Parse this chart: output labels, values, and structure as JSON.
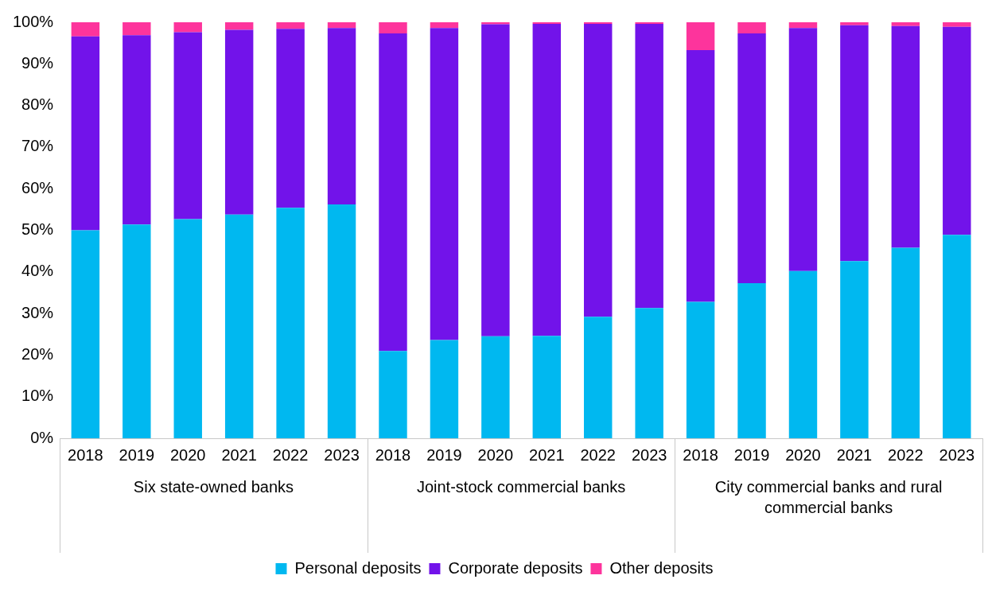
{
  "chart_data": {
    "type": "bar",
    "stacked": true,
    "categories": [
      "2018",
      "2019",
      "2020",
      "2021",
      "2022",
      "2023",
      "2018",
      "2019",
      "2020",
      "2021",
      "2022",
      "2023",
      "2018",
      "2019",
      "2020",
      "2021",
      "2022",
      "2023"
    ],
    "series": [
      {
        "name": "Personal deposits",
        "color": "#00b8f0",
        "values": [
          50.0,
          51.4,
          52.7,
          53.8,
          55.4,
          56.2,
          21.0,
          23.6,
          24.5,
          24.6,
          29.2,
          31.3,
          32.8,
          37.3,
          40.2,
          42.6,
          45.8,
          48.9
        ]
      },
      {
        "name": "Corporate deposits",
        "color": "#7213ea",
        "values": [
          46.6,
          45.5,
          44.9,
          44.4,
          43.0,
          42.4,
          76.3,
          75.0,
          75.0,
          75.0,
          70.4,
          68.3,
          60.5,
          60.0,
          58.4,
          56.7,
          53.3,
          50.0
        ]
      },
      {
        "name": "Other deposits",
        "color": "#fd349c",
        "values": [
          3.4,
          3.1,
          2.4,
          1.8,
          1.6,
          1.4,
          2.7,
          1.4,
          0.5,
          0.4,
          0.4,
          0.4,
          6.7,
          2.7,
          1.4,
          0.7,
          0.9,
          1.1
        ]
      }
    ],
    "ylim": [
      0,
      100
    ],
    "yticks": [
      {
        "value": 0,
        "label": "0%"
      },
      {
        "value": 10,
        "label": "10%"
      },
      {
        "value": 20,
        "label": "20%"
      },
      {
        "value": 30,
        "label": "30%"
      },
      {
        "value": 40,
        "label": "40%"
      },
      {
        "value": 50,
        "label": "50%"
      },
      {
        "value": 60,
        "label": "60%"
      },
      {
        "value": 70,
        "label": "70%"
      },
      {
        "value": 80,
        "label": "80%"
      },
      {
        "value": 90,
        "label": "90%"
      },
      {
        "value": 100,
        "label": "100%"
      }
    ],
    "annotations": [
      "Six state-owned banks",
      "Joint-stock commercial banks",
      "City commercial banks and rural commercial banks"
    ],
    "grid": false,
    "legend": "bottom"
  }
}
